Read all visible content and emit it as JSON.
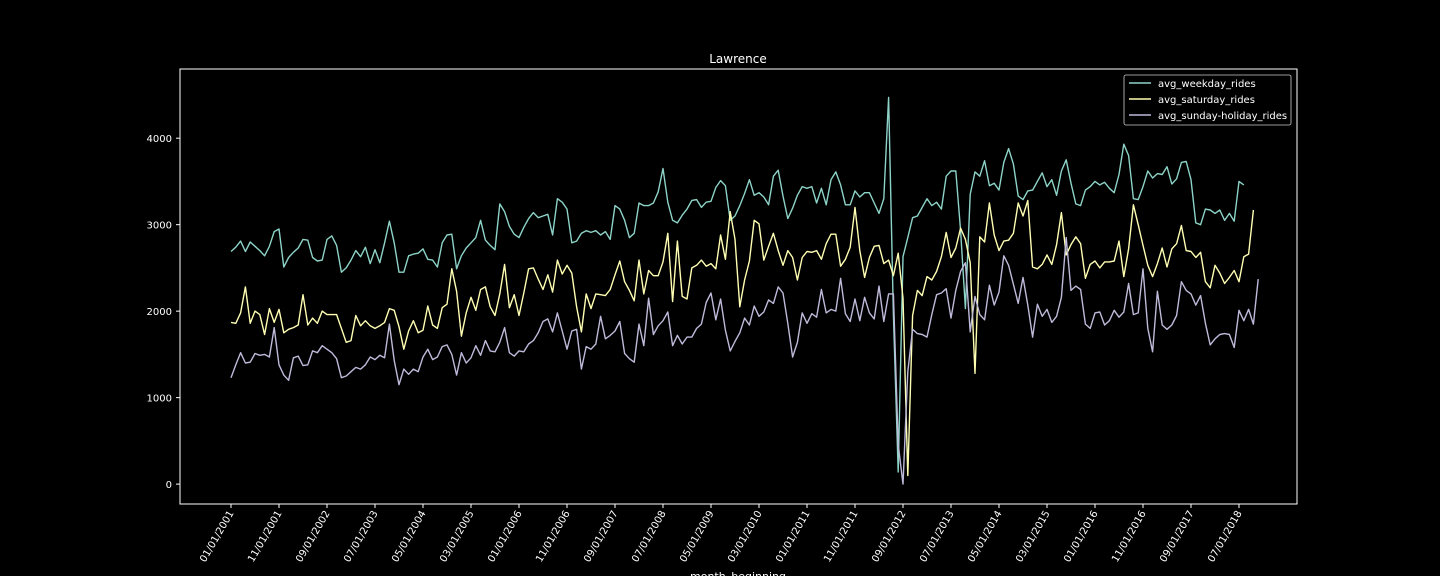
{
  "chart_data": {
    "type": "line",
    "title": "Lawrence",
    "xlabel": "month_beginning",
    "ylabel": "",
    "ylim": [
      -230,
      4800
    ],
    "yticks": [
      0,
      1000,
      2000,
      3000,
      4000
    ],
    "xtick_labels": [
      "01/01/2001",
      "11/01/2001",
      "09/01/2002",
      "07/01/2003",
      "05/01/2004",
      "03/01/2005",
      "01/01/2006",
      "11/01/2006",
      "09/01/2007",
      "07/01/2008",
      "05/01/2009",
      "03/01/2010",
      "01/01/2011",
      "11/01/2011",
      "09/01/2012",
      "07/01/2013",
      "05/01/2014",
      "03/01/2015",
      "01/01/2016",
      "11/01/2016",
      "09/01/2017",
      "07/01/2018"
    ],
    "x_start": "01/01/2001",
    "x_step": "1 month",
    "grid": false,
    "legend_position": "top-right",
    "series": [
      {
        "name": "avg_weekday_rides",
        "color": "#8dd3c7",
        "values": [
          2690,
          2740,
          2810,
          2690,
          2800,
          2750,
          2700,
          2640,
          2750,
          2920,
          2950,
          2510,
          2620,
          2680,
          2730,
          2830,
          2820,
          2620,
          2580,
          2590,
          2830,
          2870,
          2760,
          2450,
          2500,
          2590,
          2700,
          2630,
          2740,
          2550,
          2710,
          2560,
          2790,
          3040,
          2790,
          2450,
          2450,
          2640,
          2660,
          2670,
          2720,
          2600,
          2590,
          2510,
          2790,
          2880,
          2890,
          2490,
          2640,
          2730,
          2790,
          2850,
          3050,
          2820,
          2760,
          2710,
          3240,
          3150,
          2980,
          2890,
          2850,
          2970,
          3070,
          3140,
          3080,
          3100,
          3120,
          2880,
          3300,
          3260,
          3180,
          2790,
          2810,
          2900,
          2930,
          2910,
          2930,
          2880,
          2920,
          2830,
          3220,
          3180,
          3050,
          2850,
          2900,
          3250,
          3220,
          3220,
          3250,
          3380,
          3650,
          3260,
          3050,
          3020,
          3110,
          3180,
          3280,
          3290,
          3200,
          3260,
          3270,
          3430,
          3510,
          3450,
          3050,
          3100,
          3220,
          3360,
          3520,
          3340,
          3370,
          3320,
          3230,
          3560,
          3630,
          3330,
          3070,
          3190,
          3340,
          3440,
          3420,
          3440,
          3250,
          3420,
          3230,
          3520,
          3610,
          3460,
          3230,
          3230,
          3390,
          3320,
          3370,
          3370,
          3250,
          3130,
          3300,
          4470,
          1960,
          140,
          2630,
          2850,
          3080,
          3100,
          3200,
          3300,
          3220,
          3260,
          3180,
          3560,
          3620,
          3620,
          2930,
          2030,
          3350,
          3610,
          3560,
          3740,
          3450,
          3480,
          3400,
          3720,
          3880,
          3700,
          3330,
          3290,
          3390,
          3400,
          3500,
          3600,
          3440,
          3520,
          3340,
          3620,
          3750,
          3480,
          3240,
          3220,
          3400,
          3440,
          3500,
          3460,
          3490,
          3420,
          3370,
          3580,
          3930,
          3800,
          3300,
          3290,
          3440,
          3620,
          3540,
          3590,
          3580,
          3670,
          3470,
          3530,
          3720,
          3730,
          3520,
          3020,
          3000,
          3180,
          3170,
          3130,
          3170,
          3050,
          3130,
          3040,
          3500,
          3460
        ]
      },
      {
        "name": "avg_saturday_rides",
        "color": "#ffffb3",
        "values": [
          1870,
          1860,
          1980,
          2280,
          1860,
          2000,
          1960,
          1730,
          2030,
          1870,
          2020,
          1750,
          1790,
          1810,
          1840,
          2190,
          1840,
          1920,
          1860,
          2000,
          1960,
          1960,
          1960,
          1800,
          1640,
          1660,
          1950,
          1830,
          1890,
          1830,
          1800,
          1830,
          1870,
          2030,
          2010,
          1820,
          1560,
          1770,
          1890,
          1750,
          1780,
          2060,
          1840,
          1800,
          2040,
          2080,
          2490,
          2230,
          1710,
          1980,
          2160,
          2010,
          2250,
          2280,
          2050,
          1950,
          2200,
          2540,
          2040,
          2190,
          1950,
          2210,
          2490,
          2500,
          2370,
          2250,
          2420,
          2220,
          2590,
          2430,
          2530,
          2440,
          2050,
          1760,
          2200,
          2030,
          2200,
          2190,
          2180,
          2250,
          2420,
          2580,
          2340,
          2240,
          2120,
          2590,
          2200,
          2470,
          2410,
          2410,
          2570,
          2900,
          2110,
          2810,
          2170,
          2140,
          2500,
          2530,
          2590,
          2520,
          2550,
          2490,
          2880,
          2600,
          3150,
          2830,
          2050,
          2360,
          2580,
          3050,
          3010,
          2590,
          2750,
          2900,
          2700,
          2530,
          2700,
          2620,
          2360,
          2620,
          2690,
          2680,
          2700,
          2600,
          2780,
          2890,
          2890,
          2520,
          2600,
          2740,
          3200,
          2700,
          2390,
          2620,
          2750,
          2760,
          2550,
          2590,
          2410,
          2670,
          2150,
          100,
          1950,
          2240,
          2180,
          2400,
          2360,
          2460,
          2630,
          2910,
          2620,
          2730,
          2960,
          2830,
          2560,
          1280,
          2860,
          2800,
          3250,
          2880,
          2700,
          2810,
          2820,
          2900,
          3250,
          3100,
          3280,
          2510,
          2490,
          2540,
          2650,
          2540,
          2770,
          3140,
          2650,
          2770,
          2860,
          2780,
          2380,
          2540,
          2580,
          2500,
          2570,
          2570,
          2580,
          2810,
          2400,
          2720,
          3230,
          3000,
          2760,
          2530,
          2400,
          2550,
          2730,
          2510,
          2720,
          2780,
          2990,
          2700,
          2690,
          2620,
          2680,
          2340,
          2270,
          2530,
          2440,
          2320,
          2390,
          2470,
          2340,
          2630,
          2660,
          3170
        ]
      },
      {
        "name": "avg_sunday-holiday_rides",
        "color": "#bebada",
        "values": [
          1230,
          1380,
          1520,
          1400,
          1410,
          1510,
          1490,
          1500,
          1470,
          1810,
          1380,
          1260,
          1200,
          1460,
          1480,
          1370,
          1380,
          1540,
          1520,
          1600,
          1560,
          1520,
          1450,
          1230,
          1250,
          1300,
          1350,
          1330,
          1380,
          1470,
          1440,
          1490,
          1460,
          1850,
          1430,
          1150,
          1330,
          1270,
          1330,
          1300,
          1470,
          1560,
          1440,
          1470,
          1590,
          1610,
          1500,
          1260,
          1520,
          1400,
          1460,
          1600,
          1490,
          1660,
          1540,
          1530,
          1640,
          1810,
          1520,
          1480,
          1540,
          1530,
          1620,
          1660,
          1750,
          1880,
          1910,
          1760,
          1980,
          1770,
          1560,
          1770,
          1790,
          1330,
          1590,
          1560,
          1620,
          1940,
          1680,
          1720,
          1770,
          1880,
          1510,
          1450,
          1410,
          1850,
          1600,
          2150,
          1730,
          1830,
          1890,
          1990,
          1600,
          1720,
          1620,
          1700,
          1700,
          1800,
          1850,
          2100,
          2210,
          1900,
          2140,
          1780,
          1540,
          1650,
          1750,
          1920,
          1840,
          2060,
          1940,
          1990,
          2130,
          2090,
          2280,
          2210,
          1860,
          1470,
          1640,
          1980,
          1860,
          1970,
          1930,
          2250,
          1980,
          2020,
          2000,
          2380,
          1970,
          1880,
          2140,
          1890,
          2160,
          1980,
          1910,
          2290,
          1880,
          2200,
          2200,
          460,
          0,
          1300,
          1790,
          1740,
          1730,
          1700,
          1960,
          2190,
          2210,
          2260,
          1920,
          2240,
          2460,
          2560,
          1760,
          2170,
          1960,
          1900,
          2300,
          2070,
          2220,
          2640,
          2530,
          2310,
          2090,
          2390,
          2070,
          1700,
          2080,
          1940,
          2020,
          1870,
          1940,
          2160,
          2850,
          2240,
          2290,
          2250,
          1850,
          1800,
          1980,
          1990,
          1840,
          1890,
          2010,
          1930,
          1990,
          2320,
          1960,
          1980,
          2490,
          1800,
          1530,
          2230,
          1840,
          1790,
          1840,
          1950,
          2340,
          2240,
          2200,
          2070,
          2180,
          1860,
          1610,
          1680,
          1730,
          1740,
          1730,
          1580,
          2010,
          1890,
          2020,
          1850,
          2370
        ]
      }
    ]
  }
}
